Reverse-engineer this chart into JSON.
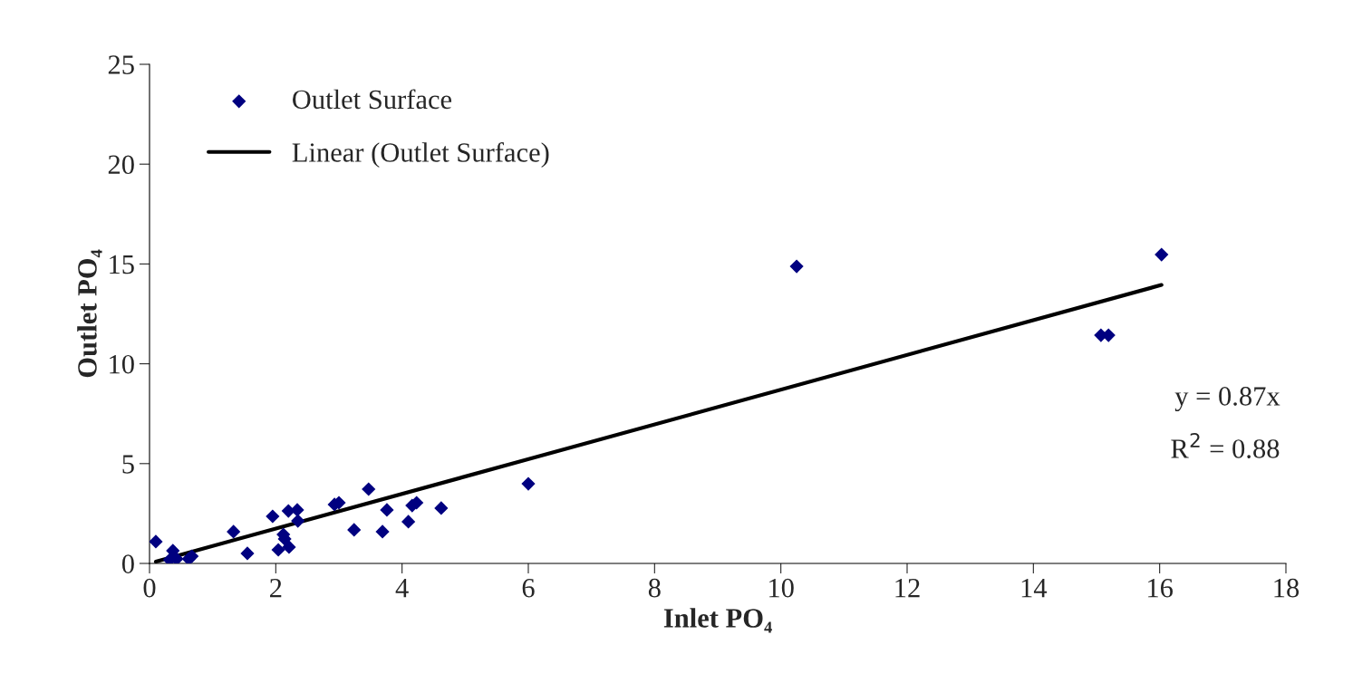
{
  "chart_data": {
    "type": "scatter",
    "xlabel": "Inlet PO₄",
    "ylabel": "Outlet PO₄",
    "xlim": [
      0,
      18
    ],
    "xticks": [
      0,
      2,
      4,
      6,
      8,
      10,
      12,
      14,
      16,
      18
    ],
    "ylim": [
      0,
      25
    ],
    "yticks": [
      0,
      5,
      10,
      15,
      20,
      25
    ],
    "grid": false,
    "legend": "top left",
    "marker": "diamond",
    "annotations": [
      "y = 0.87x",
      "R$^{2}$ = 0.88"
    ],
    "series": [
      {
        "name": "Outlet Surface",
        "color": "#000080",
        "x": [
          0.1,
          0.37,
          0.32,
          0.43,
          0.62,
          0.67,
          1.33,
          1.55,
          1.95,
          2.04,
          2.12,
          2.14,
          2.21,
          2.2,
          2.34,
          2.35,
          2.93,
          3.0,
          3.24,
          3.47,
          3.69,
          3.76,
          4.1,
          4.16,
          4.23,
          4.62,
          6.0,
          10.25,
          15.07,
          15.19,
          16.03
        ],
        "values": [
          1.09,
          0.64,
          0.18,
          0.23,
          0.23,
          0.36,
          1.59,
          0.5,
          2.36,
          0.68,
          1.45,
          1.23,
          0.82,
          2.63,
          2.68,
          2.13,
          2.95,
          3.04,
          1.68,
          3.72,
          1.59,
          2.68,
          2.09,
          2.9,
          3.04,
          2.77,
          3.99,
          14.88,
          11.43,
          11.43,
          15.47
        ]
      },
      {
        "name": "Linear (Outlet Surface)",
        "type": "line",
        "color": "#000000",
        "line_style": "solid",
        "marker": "none",
        "x": [
          0.1,
          16.03
        ],
        "values": [
          0.09,
          13.95
        ]
      }
    ]
  }
}
